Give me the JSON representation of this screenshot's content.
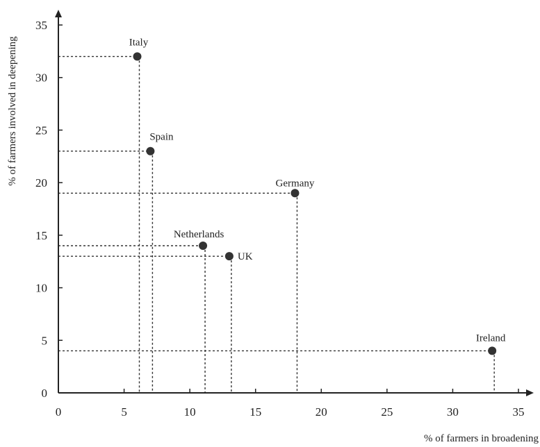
{
  "chart_data": {
    "type": "scatter",
    "xlabel": "% of farmers in broadening",
    "ylabel": "% of farmers involved in deepening",
    "xlim": [
      0,
      36
    ],
    "ylim": [
      0,
      36
    ],
    "xticks": [
      0,
      5,
      10,
      15,
      20,
      25,
      30,
      35
    ],
    "yticks": [
      0,
      5,
      10,
      15,
      20,
      25,
      30,
      35
    ],
    "grid": false,
    "guide_lines": "dashed lines from each point to both axes",
    "points": [
      {
        "label": "Italy",
        "x": 6,
        "y": 32
      },
      {
        "label": "Spain",
        "x": 7,
        "y": 23
      },
      {
        "label": "Germany",
        "x": 18,
        "y": 19
      },
      {
        "label": "Netherlands",
        "x": 11,
        "y": 14
      },
      {
        "label": "UK",
        "x": 13,
        "y": 13
      },
      {
        "label": "Ireland",
        "x": 33,
        "y": 4
      }
    ],
    "colors": {
      "marker": "#333333",
      "axis": "#222222"
    }
  }
}
